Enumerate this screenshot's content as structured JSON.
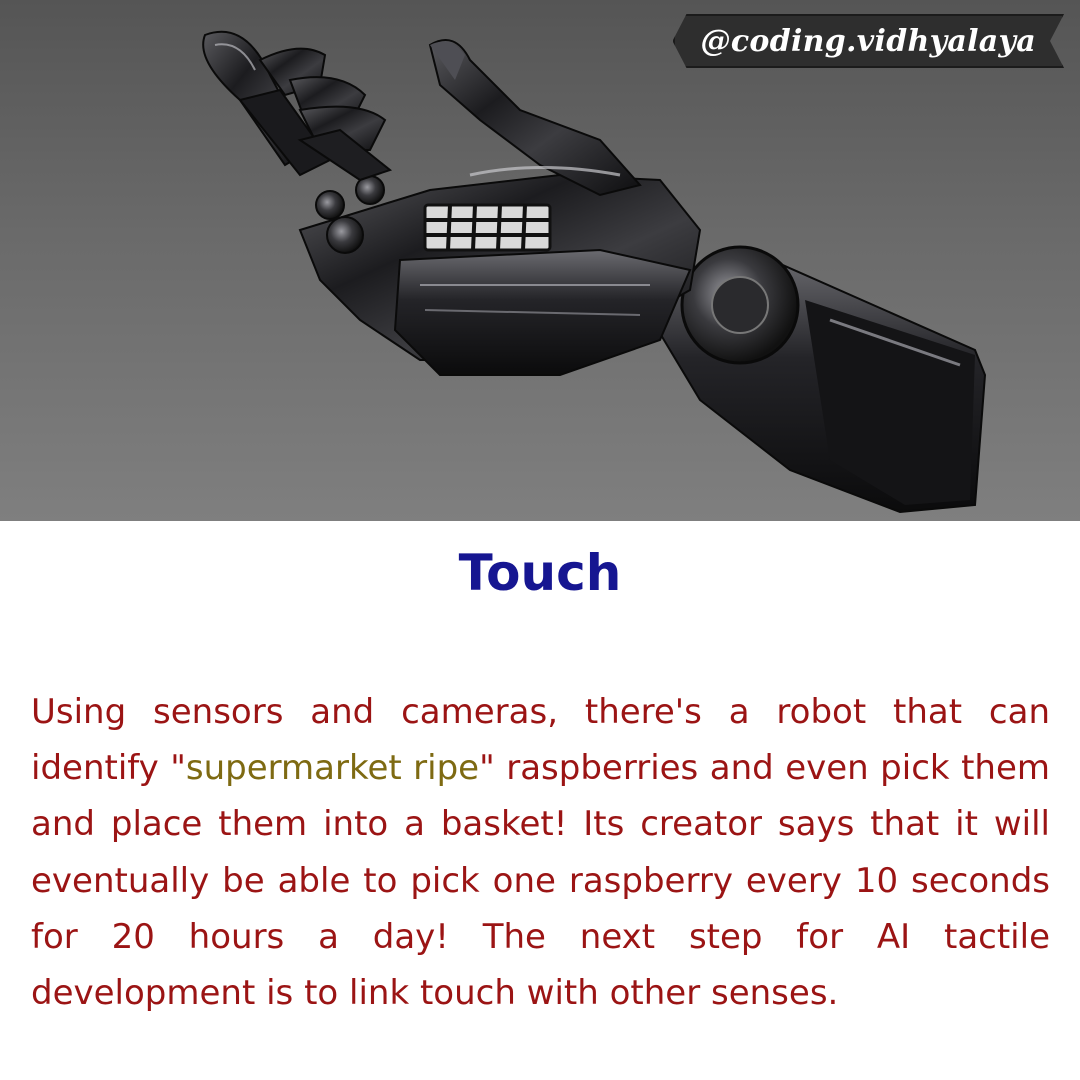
{
  "hero": {
    "image_subject": "robotic-hand",
    "watermark": "@coding.vidhyalaya"
  },
  "title": "Touch",
  "body": {
    "part1": "Using sensors and cameras, there's a robot that can identify \"",
    "highlight": "supermarket ripe",
    "part2": "\" raspberries and even pick them and place them into a basket! Its creator says that it will eventually be able to pick one raspberry every 10 seconds for 20 hours a day! The next step for AI tactile development is to link touch with other senses."
  },
  "colors": {
    "title": "#161691",
    "body": "#9b1414",
    "highlight": "#7e6a12",
    "hero_bg": "#6a6a6a"
  }
}
